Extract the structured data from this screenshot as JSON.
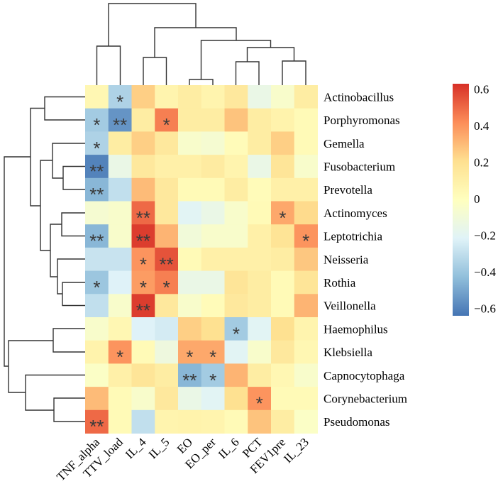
{
  "chart_data": {
    "type": "heatmap",
    "title": "",
    "columns": [
      "TNF_alpha",
      "TTV_load",
      "IL_4",
      "IL_5",
      "EO",
      "EO_per",
      "IL_6",
      "PCT",
      "FEV1pre",
      "IL_23"
    ],
    "rows": [
      "Actinobacillus",
      "Porphyromonas",
      "Gemella",
      "Fusobacterium",
      "Prevotella",
      "Actinomyces",
      "Leptotrichia",
      "Neisseria",
      "Rothia",
      "Veillonella",
      "Haemophilus",
      "Klebsiella",
      "Capnocytophaga",
      "Corynebacterium",
      "Pseudomonas"
    ],
    "values": [
      [
        0.05,
        -0.35,
        0.25,
        0.07,
        0.12,
        0.07,
        0.15,
        -0.15,
        -0.05,
        0.12
      ],
      [
        -0.38,
        -0.55,
        0.12,
        0.45,
        0.12,
        0.12,
        0.28,
        0.12,
        0.08,
        0.03
      ],
      [
        -0.35,
        0.12,
        0.25,
        0.15,
        -0.05,
        -0.07,
        0.02,
        0.12,
        0.25,
        0.03
      ],
      [
        -0.6,
        -0.15,
        0.15,
        0.1,
        0.1,
        0.13,
        0.07,
        -0.15,
        0.17,
        -0.05
      ],
      [
        -0.45,
        -0.3,
        0.3,
        0.15,
        0.03,
        0.03,
        0.12,
        0.02,
        0.1,
        0.1
      ],
      [
        -0.07,
        -0.05,
        0.5,
        0.15,
        -0.2,
        -0.15,
        -0.05,
        0.03,
        0.35,
        0.22
      ],
      [
        -0.45,
        -0.05,
        0.6,
        0.32,
        -0.1,
        -0.05,
        -0.05,
        0.1,
        0.18,
        0.4
      ],
      [
        -0.28,
        -0.28,
        0.4,
        0.55,
        0.03,
        0.1,
        0.1,
        0.1,
        0.12,
        0.27
      ],
      [
        -0.4,
        -0.22,
        0.38,
        0.45,
        -0.15,
        -0.15,
        0.17,
        0.12,
        0.03,
        0.17
      ],
      [
        -0.3,
        -0.05,
        0.6,
        0.15,
        -0.05,
        0.02,
        0.15,
        0.12,
        0.03,
        0.32
      ],
      [
        -0.05,
        0.05,
        -0.22,
        -0.25,
        0.25,
        0.2,
        -0.38,
        -0.2,
        0.2,
        0.07
      ],
      [
        0.08,
        0.4,
        0.03,
        -0.12,
        0.35,
        0.35,
        -0.2,
        -0.05,
        0.15,
        0.05
      ],
      [
        -0.03,
        0.1,
        0.17,
        0.12,
        -0.45,
        -0.38,
        0.32,
        0.12,
        0.05,
        -0.05
      ],
      [
        0.3,
        0.03,
        -0.05,
        0.15,
        -0.15,
        -0.2,
        0.2,
        0.4,
        0.03,
        0.03
      ],
      [
        0.5,
        0.03,
        -0.3,
        0.07,
        0.08,
        0.07,
        0.03,
        0.28,
        0.12,
        -0.03
      ]
    ],
    "significance": [
      [
        "",
        "*",
        "",
        "",
        "",
        "",
        "",
        "",
        "",
        ""
      ],
      [
        "*",
        "**",
        "",
        "*",
        "",
        "",
        "",
        "",
        "",
        ""
      ],
      [
        "*",
        "",
        "",
        "",
        "",
        "",
        "",
        "",
        "",
        ""
      ],
      [
        "**",
        "",
        "",
        "",
        "",
        "",
        "",
        "",
        "",
        ""
      ],
      [
        "**",
        "",
        "",
        "",
        "",
        "",
        "",
        "",
        "",
        ""
      ],
      [
        "",
        "",
        "**",
        "",
        "",
        "",
        "",
        "",
        "*",
        ""
      ],
      [
        "**",
        "",
        "**",
        "",
        "",
        "",
        "",
        "",
        "",
        "*"
      ],
      [
        "",
        "",
        "*",
        "**",
        "",
        "",
        "",
        "",
        "",
        ""
      ],
      [
        "*",
        "",
        "*",
        "*",
        "",
        "",
        "",
        "",
        "",
        ""
      ],
      [
        "",
        "",
        "**",
        "",
        "",
        "",
        "",
        "",
        "",
        ""
      ],
      [
        "",
        "",
        "",
        "",
        "",
        "",
        "*",
        "",
        "",
        ""
      ],
      [
        "",
        "*",
        "",
        "",
        "*",
        "*",
        "",
        "",
        "",
        ""
      ],
      [
        "",
        "",
        "",
        "",
        "**",
        "*",
        "",
        "",
        "",
        ""
      ],
      [
        "",
        "",
        "",
        "",
        "",
        "",
        "",
        "*",
        "",
        ""
      ],
      [
        "**",
        "",
        "",
        "",
        "",
        "",
        "",
        "",
        "",
        ""
      ]
    ],
    "colorbar": {
      "ticks": [
        0.6,
        0.4,
        0.2,
        0,
        -0.2,
        -0.4,
        -0.6
      ],
      "tick_labels": [
        "0.6",
        "0.4",
        "0.2",
        "0",
        "−0.2",
        "−0.4",
        "−0.6"
      ],
      "range": [
        -0.64,
        0.63
      ],
      "colors": [
        "#4575B4",
        "#91BFDB",
        "#E0F3F8",
        "#FFFFBF",
        "#FEE090",
        "#FC8D59",
        "#D73027"
      ]
    },
    "row_dendrogram": true,
    "column_dendrogram": true,
    "legend_placement": "right"
  }
}
